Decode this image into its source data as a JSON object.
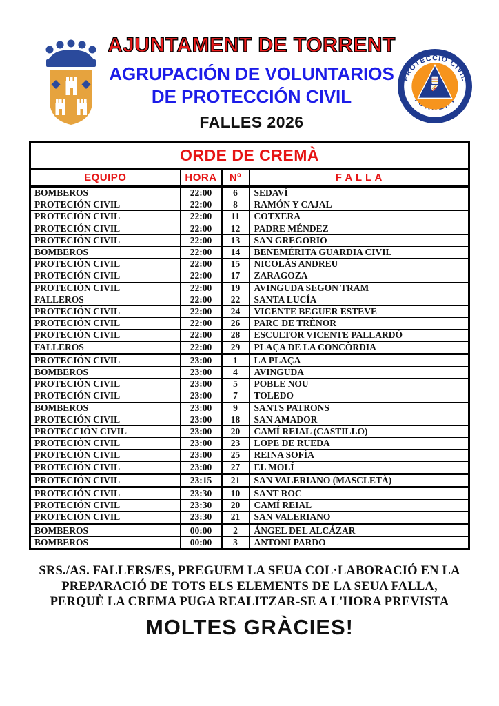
{
  "header": {
    "title": "AJUNTAMENT DE TORRENT",
    "subtitle1": "AGRUPACIÓN DE VOLUNTARIOS",
    "subtitle2": "DE PROTECCIÓN CIVIL",
    "event": "FALLES 2026",
    "left_logo": "torrent-coat-of-arms",
    "right_logo": "proteccio-civil-torrent-badge",
    "right_logo_text_top": "PROTECCIÓ CIVIL",
    "right_logo_text_bottom": "TORRENT"
  },
  "table": {
    "title": "ORDE DE CREMÀ",
    "columns": [
      "EQUIPO",
      "HORA",
      "Nº",
      "F A L L A"
    ],
    "rows": [
      [
        "BOMBEROS",
        "22:00",
        "6",
        "SEDAVÍ"
      ],
      [
        "PROTECIÓN CIVIL",
        "22:00",
        "8",
        "RAMÓN Y CAJAL"
      ],
      [
        "PROTECIÓN CIVIL",
        "22:00",
        "11",
        "COTXERA"
      ],
      [
        "PROTECIÓN CIVIL",
        "22:00",
        "12",
        "PADRE MÉNDEZ"
      ],
      [
        "PROTECIÓN CIVIL",
        "22:00",
        "13",
        "SAN GREGORIO"
      ],
      [
        "BOMBEROS",
        "22:00",
        "14",
        "BENEMÉRITA GUARDIA CIVIL"
      ],
      [
        "PROTECIÓN CIVIL",
        "22:00",
        "15",
        "NICOLÁS ANDREU"
      ],
      [
        "PROTECIÓN CIVIL",
        "22:00",
        "17",
        "ZARAGOZA"
      ],
      [
        "PROTECIÓN CIVIL",
        "22:00",
        "19",
        "AVINGUDA SEGON TRAM"
      ],
      [
        "FALLEROS",
        "22:00",
        "22",
        "SANTA LUCÍA"
      ],
      [
        "PROTECIÓN CIVIL",
        "22:00",
        "24",
        "VICENTE BEGUER ESTEVE"
      ],
      [
        "PROTECIÓN CIVIL",
        "22:00",
        "26",
        "PARC DE TRÈNOR"
      ],
      [
        "PROTECIÓN CIVIL",
        "22:00",
        "28",
        "ESCULTOR VICENTE PALLARDÓ"
      ],
      [
        "FALLEROS",
        "22:00",
        "29",
        "PLAÇA DE LA CONCÒRDIA"
      ],
      [
        "PROTECIÓN CIVIL",
        "23:00",
        "1",
        "LA PLAÇA"
      ],
      [
        "BOMBEROS",
        "23:00",
        "4",
        "AVINGUDA"
      ],
      [
        "PROTECIÓN CIVIL",
        "23:00",
        "5",
        "POBLE NOU"
      ],
      [
        "PROTECIÓN CIVIL",
        "23:00",
        "7",
        "TOLEDO"
      ],
      [
        "BOMBEROS",
        "23:00",
        "9",
        "SANTS PATRONS"
      ],
      [
        "PROTECIÓN CIVIL",
        "23:00",
        "18",
        "SAN AMADOR"
      ],
      [
        "PROTECCIÓN CIVIL",
        "23:00",
        "20",
        "CAMÍ REIAL (CASTILLO)"
      ],
      [
        "PROTECIÓN CIVIL",
        "23:00",
        "23",
        "LOPE DE RUEDA"
      ],
      [
        "PROTECIÓN CIVIL",
        "23:00",
        "25",
        "REINA SOFÍA"
      ],
      [
        "PROTECIÓN CIVIL",
        "23:00",
        "27",
        "EL MOLÍ"
      ],
      [
        "PROTECIÓN CIVIL",
        "23:15",
        "21",
        "SAN VALERIANO (MASCLETÀ)"
      ],
      [
        "PROTECIÓN CIVIL",
        "23:30",
        "10",
        "SANT ROC"
      ],
      [
        "PROTECIÓN CIVIL",
        "23:30",
        "20",
        "CAMÍ REIAL"
      ],
      [
        "PROTECIÓN CIVIL",
        "23:30",
        "21",
        "SAN VALERIANO"
      ],
      [
        "BOMBEROS",
        "00:00",
        "2",
        "ÁNGEL DEL ALCÁZAR"
      ],
      [
        "BOMBEROS",
        "00:00",
        "3",
        "ANTONI PARDO"
      ]
    ]
  },
  "footer": {
    "line1": "SRS./AS. FALLERS/ES, PREGUEM LA SEUA COL·LABORACIÓ EN LA",
    "line2": "PREPARACIÓ DE TOTS ELS ELEMENTS DE LA SEUA FALLA,",
    "line3": "PERQUÈ LA CREMA PUGA REALITZAR-SE A L'HORA PREVISTA",
    "thanks": "MOLTES GRÀCIES!"
  },
  "colors": {
    "title_red": "#ed1c1c",
    "table_red": "#e61414",
    "heading_blue": "#1c1ce8",
    "crest_gold": "#e6a33e",
    "badge_navy": "#1f3a8f",
    "badge_orange": "#f6941d",
    "text_black": "#111111"
  }
}
